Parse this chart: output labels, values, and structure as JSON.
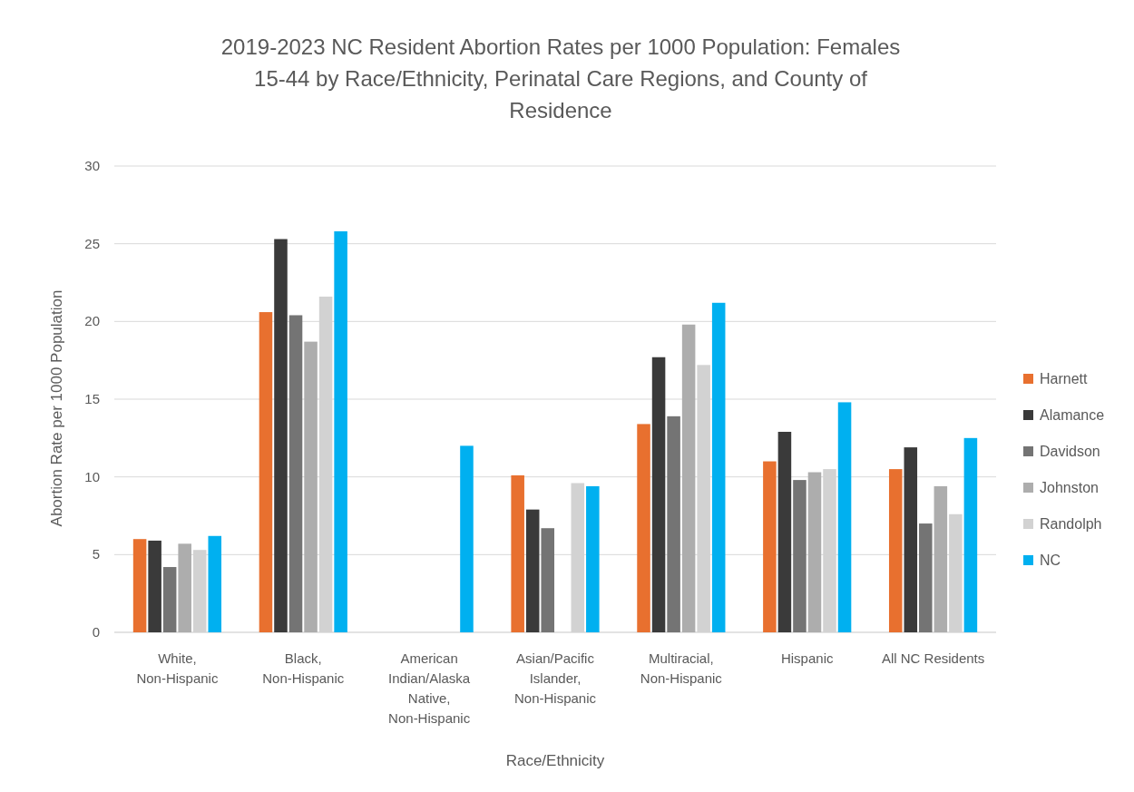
{
  "chart_data": {
    "type": "bar",
    "title": "2019-2023 NC Resident Abortion Rates per 1000 Population: Females 15-44 by Race/Ethnicity, Perinatal Care Regions, and County of Residence",
    "xlabel": "Race/Ethnicity",
    "ylabel": "Abortion Rate per 1000 Population",
    "categories": [
      "White, Non-Hispanic",
      "Black, Non-Hispanic",
      "American Indian/Alaska Native, Non-Hispanic",
      "Asian/Pacific Islander, Non-Hispanic",
      "Multiracial, Non-Hispanic",
      "Hispanic",
      "All NC Residents"
    ],
    "series": [
      {
        "name": "Harnett",
        "color": "#e8702f",
        "values": [
          6.0,
          20.6,
          null,
          10.1,
          13.4,
          11.0,
          10.5
        ]
      },
      {
        "name": "Alamance",
        "color": "#3a3a3a",
        "values": [
          5.9,
          25.3,
          null,
          7.9,
          17.7,
          12.9,
          11.9
        ]
      },
      {
        "name": "Davidson",
        "color": "#747474",
        "values": [
          4.2,
          20.4,
          null,
          6.7,
          13.9,
          9.8,
          7.0
        ]
      },
      {
        "name": "Johnston",
        "color": "#adadad",
        "values": [
          5.7,
          18.7,
          null,
          null,
          19.8,
          10.3,
          9.4
        ]
      },
      {
        "name": "Randolph",
        "color": "#d2d2d2",
        "values": [
          5.3,
          21.6,
          null,
          9.6,
          17.2,
          10.5,
          7.6
        ]
      },
      {
        "name": "NC",
        "color": "#00b0f0",
        "values": [
          6.2,
          25.8,
          12.0,
          9.4,
          21.2,
          14.8,
          12.5
        ]
      }
    ],
    "ylim": [
      0,
      30
    ],
    "yticks": [
      0,
      5,
      10,
      15,
      20,
      25,
      30
    ],
    "grid": "y",
    "legend": "right"
  }
}
